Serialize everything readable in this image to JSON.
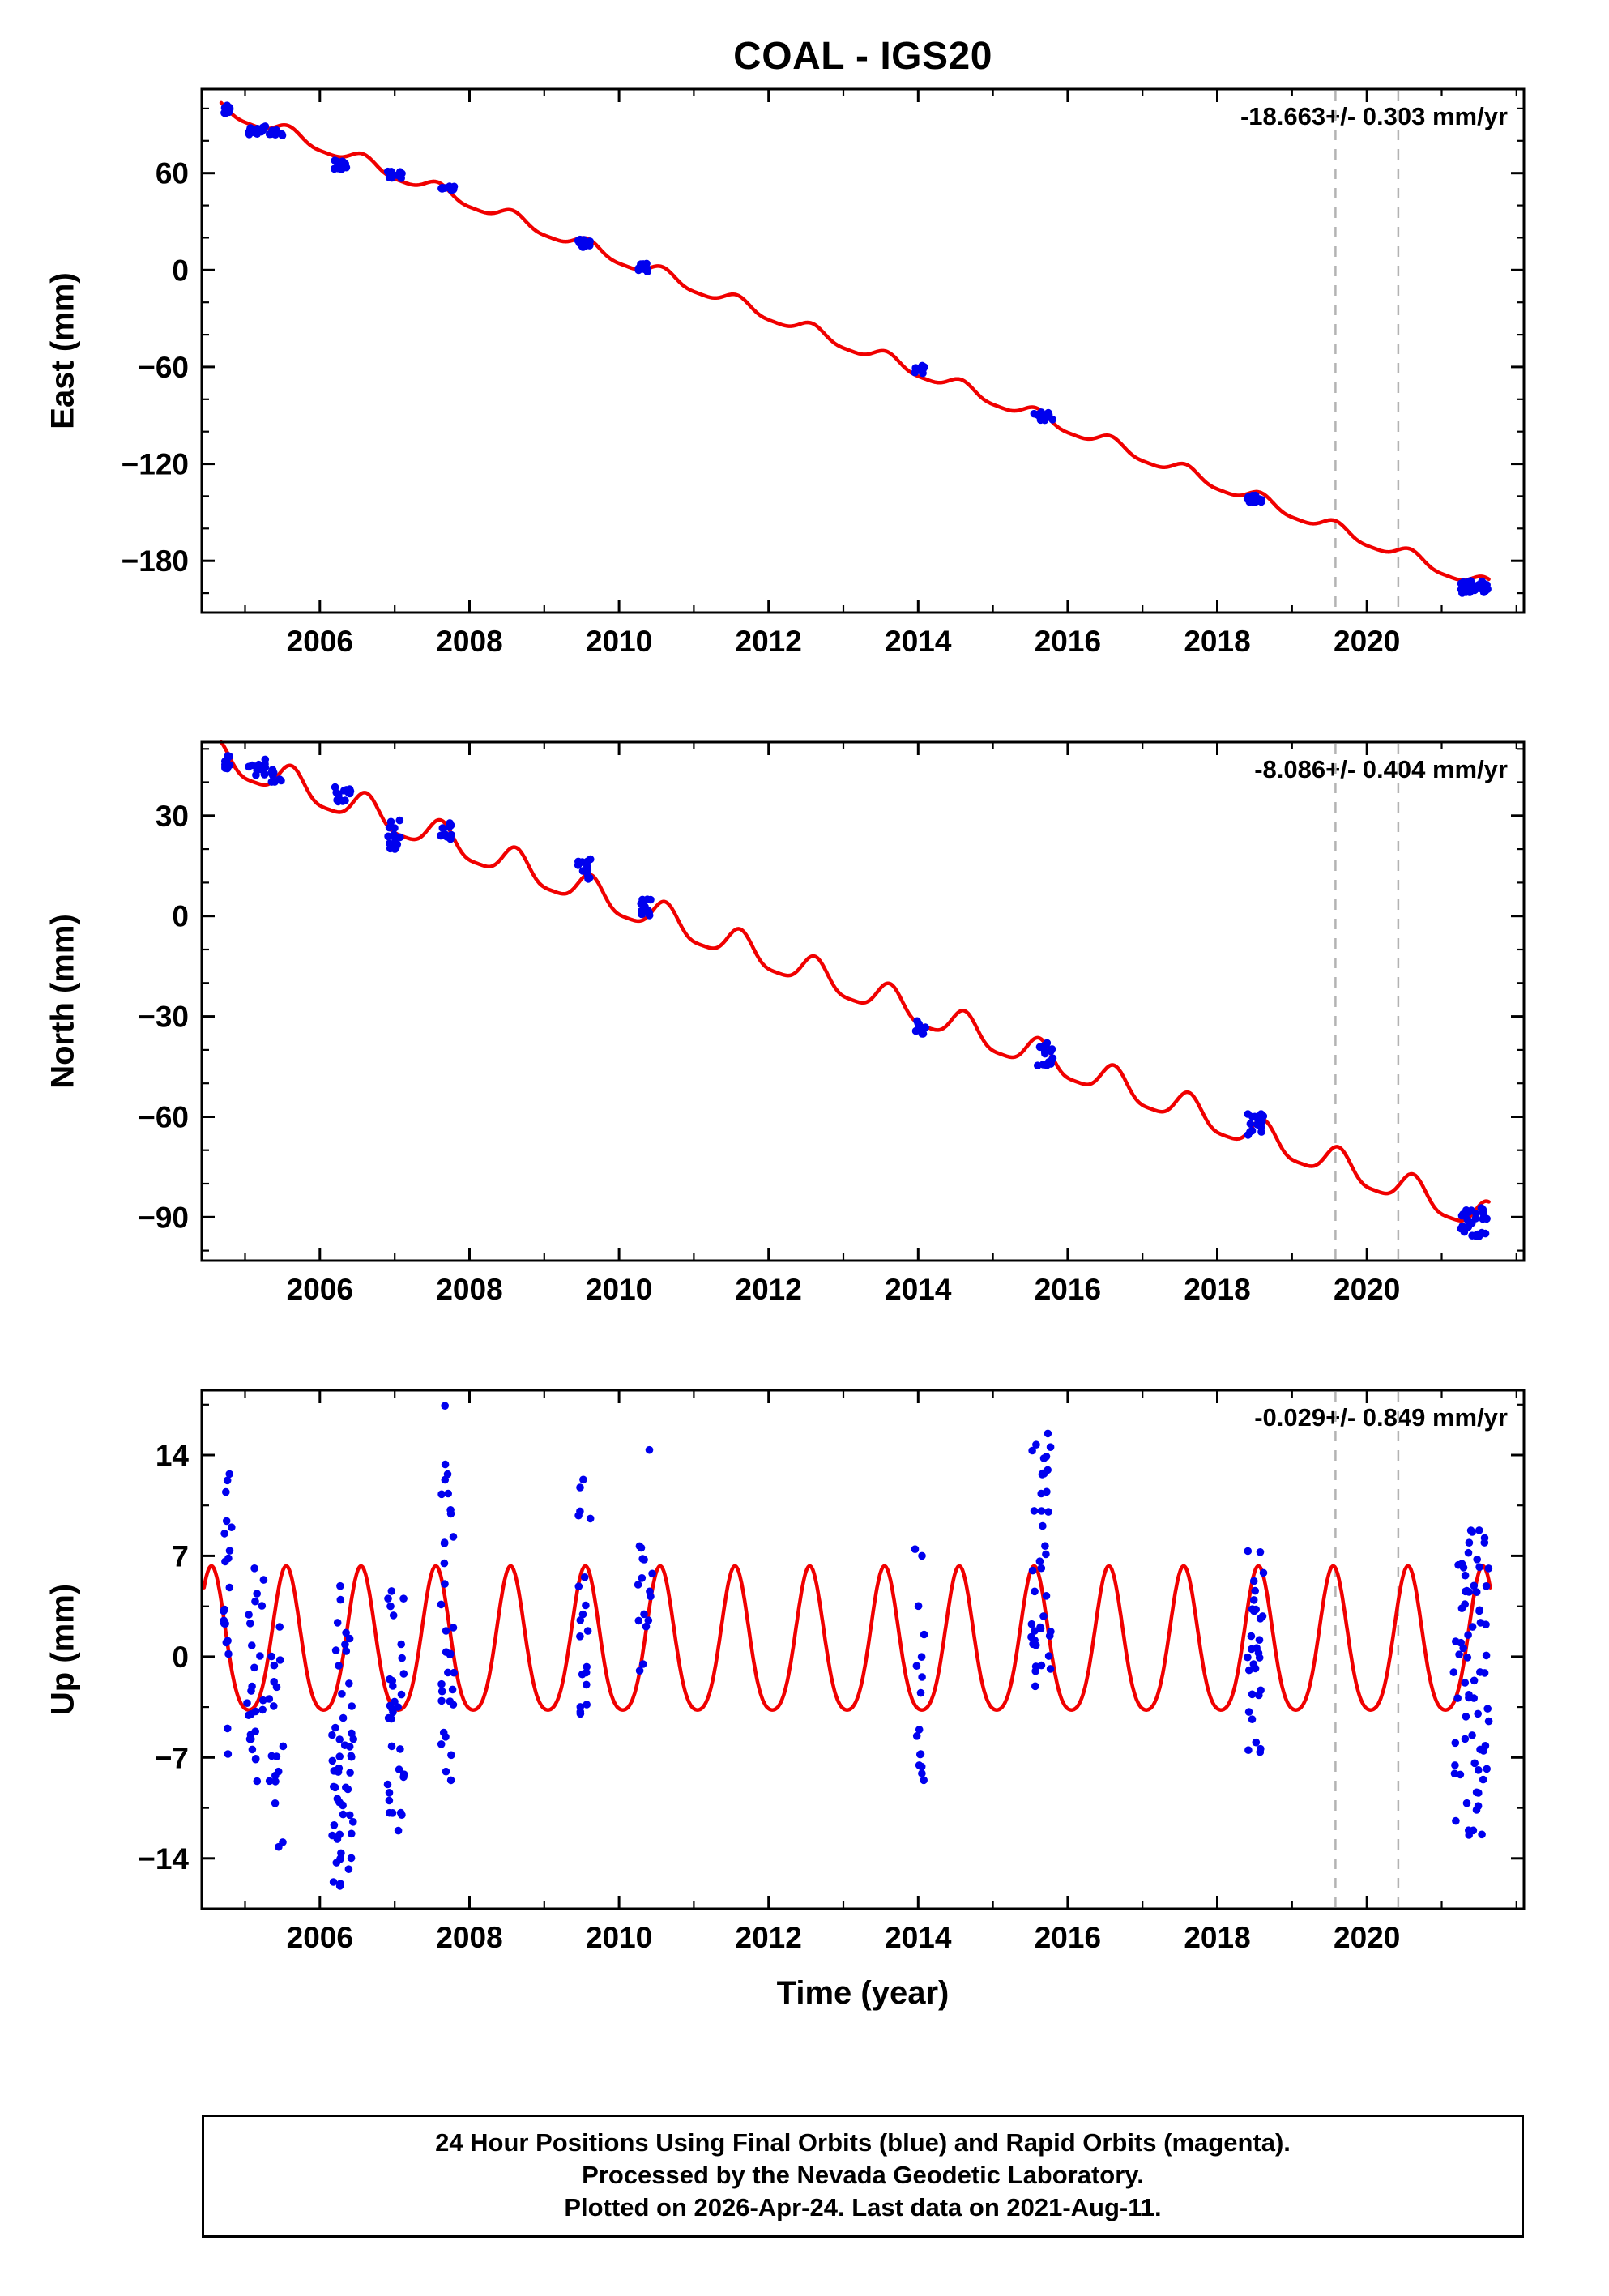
{
  "title": "COAL - IGS20",
  "xlabel": "Time (year)",
  "caption": {
    "line1": "24 Hour Positions Using Final Orbits (blue) and Rapid Orbits (magenta).",
    "line2": "Processed by the Nevada Geodetic Laboratory.",
    "line3": "Plotted on 2026-Apr-24. Last data on 2021-Aug-11."
  },
  "colors": {
    "points": "#0000ee",
    "model": "#f00000",
    "dashed": "#b3b3b3",
    "frame": "#000000"
  },
  "dashed_lines_x": [
    2019.58,
    2020.42
  ],
  "chart_data": [
    {
      "id": "east",
      "type": "scatter",
      "ylabel": "East (mm)",
      "rate_label": "-18.663+/- 0.303 mm/yr",
      "xlim": [
        2004.42,
        2022.1
      ],
      "ylim": [
        -212,
        112
      ],
      "xticks": [
        2006,
        2008,
        2010,
        2012,
        2014,
        2016,
        2018,
        2020
      ],
      "yticks": [
        60,
        0,
        -60,
        -120,
        -180
      ],
      "y_minor_step": 20,
      "grid": false,
      "trend": {
        "t0": 2004.68,
        "t1": 2021.63,
        "v0": 100,
        "v1": -196,
        "annual_amp": 4.0,
        "semiannual_amp": 1.0,
        "peak_frac": 0.58
      },
      "clusters": [
        {
          "t": [
            2004.71,
            2004.8
          ],
          "v": [
            97,
            102
          ],
          "n": 12
        },
        {
          "t": [
            2005.02,
            2005.27
          ],
          "v": [
            84,
            90
          ],
          "n": 14
        },
        {
          "t": [
            2005.32,
            2005.5
          ],
          "v": [
            83,
            87
          ],
          "n": 8
        },
        {
          "t": [
            2006.16,
            2006.42
          ],
          "v": [
            62,
            68
          ],
          "n": 16
        },
        {
          "t": [
            2006.9,
            2007.1
          ],
          "v": [
            56,
            61
          ],
          "n": 12
        },
        {
          "t": [
            2007.6,
            2007.8
          ],
          "v": [
            48,
            53
          ],
          "n": 12
        },
        {
          "t": [
            2009.45,
            2009.62
          ],
          "v": [
            14,
            19
          ],
          "n": 12
        },
        {
          "t": [
            2010.25,
            2010.46
          ],
          "v": [
            -1,
            4
          ],
          "n": 12
        },
        {
          "t": [
            2013.95,
            2014.1
          ],
          "v": [
            -64,
            -59
          ],
          "n": 10
        },
        {
          "t": [
            2015.55,
            2015.8
          ],
          "v": [
            -93,
            -88
          ],
          "n": 14
        },
        {
          "t": [
            2018.4,
            2018.62
          ],
          "v": [
            -144,
            -139
          ],
          "n": 14
        },
        {
          "t": [
            2021.25,
            2021.63
          ],
          "v": [
            -200,
            -192
          ],
          "n": 30
        }
      ]
    },
    {
      "id": "north",
      "type": "scatter",
      "ylabel": "North (mm)",
      "rate_label": "-8.086+/- 0.404 mm/yr",
      "xlim": [
        2004.42,
        2022.1
      ],
      "ylim": [
        -103,
        52
      ],
      "xticks": [
        2006,
        2008,
        2010,
        2012,
        2014,
        2016,
        2018,
        2020
      ],
      "yticks": [
        30,
        0,
        -30,
        -60,
        -90
      ],
      "y_minor_step": 10,
      "grid": false,
      "trend": {
        "t0": 2004.68,
        "t1": 2021.63,
        "v0": 47,
        "v1": -91,
        "annual_amp": 4.5,
        "semiannual_amp": 1.1,
        "peak_frac": 0.62
      },
      "clusters": [
        {
          "t": [
            2004.71,
            2004.8
          ],
          "v": [
            44,
            48
          ],
          "n": 12
        },
        {
          "t": [
            2005.02,
            2005.27
          ],
          "v": [
            42,
            47
          ],
          "n": 14
        },
        {
          "t": [
            2005.32,
            2005.5
          ],
          "v": [
            40,
            44
          ],
          "n": 8
        },
        {
          "t": [
            2006.16,
            2006.42
          ],
          "v": [
            34,
            39
          ],
          "n": 16
        },
        {
          "t": [
            2006.9,
            2007.1
          ],
          "v": [
            19,
            30
          ],
          "n": 14
        },
        {
          "t": [
            2007.6,
            2007.8
          ],
          "v": [
            23,
            28
          ],
          "n": 12
        },
        {
          "t": [
            2009.45,
            2009.62
          ],
          "v": [
            11,
            17
          ],
          "n": 12
        },
        {
          "t": [
            2010.25,
            2010.46
          ],
          "v": [
            0,
            5
          ],
          "n": 12
        },
        {
          "t": [
            2013.95,
            2014.1
          ],
          "v": [
            -36,
            -31
          ],
          "n": 10
        },
        {
          "t": [
            2015.55,
            2015.8
          ],
          "v": [
            -47,
            -37
          ],
          "n": 16
        },
        {
          "t": [
            2018.4,
            2018.62
          ],
          "v": [
            -67,
            -59
          ],
          "n": 16
        },
        {
          "t": [
            2021.25,
            2021.63
          ],
          "v": [
            -96,
            -87
          ],
          "n": 30
        }
      ]
    },
    {
      "id": "up",
      "type": "scatter",
      "ylabel": "Up (mm)",
      "rate_label": "-0.029+/- 0.849 mm/yr",
      "xlim": [
        2004.42,
        2022.1
      ],
      "ylim": [
        -17.5,
        18.5
      ],
      "xticks": [
        2006,
        2008,
        2010,
        2012,
        2014,
        2016,
        2018,
        2020
      ],
      "yticks": [
        14,
        7,
        0,
        -7,
        -14
      ],
      "y_minor_step": 3.5,
      "grid": false,
      "trend": {
        "t0": 2004.45,
        "t1": 2021.65,
        "v0": 0.5,
        "v1": 0.5,
        "annual_amp": 5.0,
        "semiannual_amp": 0.8,
        "peak_frac": 0.55
      },
      "clusters": [
        {
          "t": [
            2004.71,
            2004.82
          ],
          "v": [
            -7.5,
            13.0
          ],
          "n": 20
        },
        {
          "t": [
            2005.02,
            2005.3
          ],
          "v": [
            -9,
            8.5
          ],
          "n": 26
        },
        {
          "t": [
            2005.32,
            2005.52
          ],
          "v": [
            -13.5,
            3
          ],
          "n": 18
        },
        {
          "t": [
            2006.16,
            2006.45
          ],
          "v": [
            -16,
            -4
          ],
          "n": 42
        },
        {
          "t": [
            2006.16,
            2006.45
          ],
          "v": [
            -4,
            5
          ],
          "n": 12
        },
        {
          "t": [
            2006.9,
            2007.15
          ],
          "v": [
            -12.5,
            -2
          ],
          "n": 22
        },
        {
          "t": [
            2006.9,
            2007.15
          ],
          "v": [
            -2,
            5.5
          ],
          "n": 10
        },
        {
          "t": [
            2007.6,
            2007.8
          ],
          "v": [
            -4,
            13.5
          ],
          "n": 26
        },
        {
          "t": [
            2007.62,
            2007.76
          ],
          "v": [
            -9,
            -4
          ],
          "n": 6
        },
        {
          "t": [
            2007.67,
            2007.7
          ],
          "v": [
            17.3,
            17.5
          ],
          "n": 1
        },
        {
          "t": [
            2009.45,
            2009.62
          ],
          "v": [
            -4,
            12.5
          ],
          "n": 20
        },
        {
          "t": [
            2010.25,
            2010.46
          ],
          "v": [
            -2,
            8
          ],
          "n": 15
        },
        {
          "t": [
            2010.38,
            2010.42
          ],
          "v": [
            14.2,
            14.4
          ],
          "n": 1
        },
        {
          "t": [
            2013.95,
            2014.1
          ],
          "v": [
            -8.8,
            7.8
          ],
          "n": 16
        },
        {
          "t": [
            2015.5,
            2015.78
          ],
          "v": [
            -3.5,
            15.8
          ],
          "n": 40
        },
        {
          "t": [
            2018.4,
            2018.62
          ],
          "v": [
            -7.8,
            8.8
          ],
          "n": 30
        },
        {
          "t": [
            2021.15,
            2021.63
          ],
          "v": [
            -12.5,
            8.8
          ],
          "n": 70
        }
      ]
    }
  ]
}
